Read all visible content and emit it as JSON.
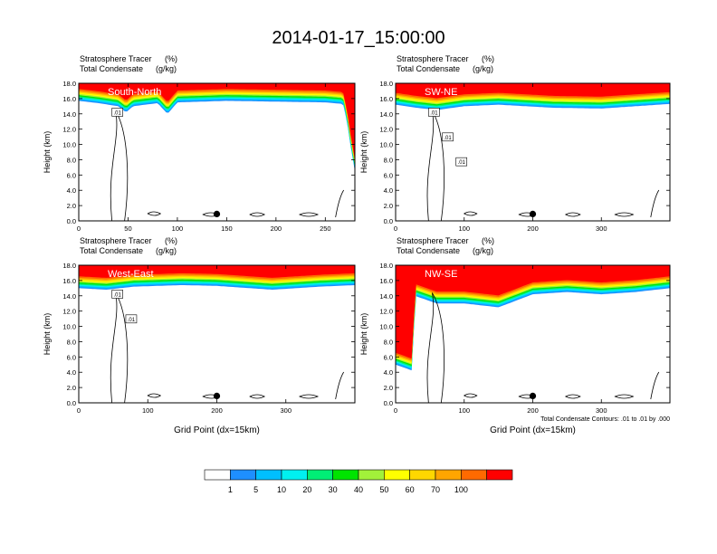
{
  "page": {
    "title": "2014-01-17_15:00:00"
  },
  "colorbar": {
    "levels": [
      "1",
      "5",
      "10",
      "20",
      "30",
      "40",
      "50",
      "60",
      "70",
      "100"
    ],
    "colors": [
      "#ffffff",
      "#1e8fff",
      "#00bfff",
      "#00f0f0",
      "#00ee76",
      "#00e400",
      "#a2f13a",
      "#ffff00",
      "#ffd700",
      "#ffa500",
      "#ff6a00",
      "#ff0000"
    ]
  },
  "chart_data": [
    {
      "type": "heatmap",
      "panel_label": "South-North",
      "line1_name": "Stratosphere Tracer",
      "line1_unit": "(%)",
      "line2_name": "Total Condensate",
      "line2_unit": "(g/kg)",
      "ylabel": "Height (km)",
      "xlabel": "",
      "xlim": [
        0,
        280
      ],
      "ylim": [
        0,
        18
      ],
      "xticks": [
        "0",
        "50",
        "100",
        "150",
        "200",
        "250"
      ],
      "yticks": [
        "0.0",
        "2.0",
        "4.0",
        "6.0",
        "8.0",
        "10.0",
        "12.0",
        "14.0",
        "16.0",
        "18.0"
      ],
      "tracer_bottom_km": [
        [
          0,
          15.7
        ],
        [
          20,
          15.4
        ],
        [
          40,
          15.0
        ],
        [
          48,
          14.2
        ],
        [
          55,
          15.0
        ],
        [
          80,
          15.4
        ],
        [
          90,
          14.0
        ],
        [
          100,
          15.5
        ],
        [
          150,
          15.7
        ],
        [
          200,
          15.6
        ],
        [
          250,
          15.5
        ],
        [
          268,
          15.3
        ],
        [
          272,
          13.0
        ],
        [
          276,
          9.5
        ],
        [
          280,
          6.5
        ]
      ],
      "contour_labels": [
        ".01"
      ],
      "marker_x": 140,
      "note": ""
    },
    {
      "type": "heatmap",
      "panel_label": "SW-NE",
      "line1_name": "Stratosphere Tracer",
      "line1_unit": "(%)",
      "line2_name": "Total Condensate",
      "line2_unit": "(g/kg)",
      "ylabel": "Height (km)",
      "xlabel": "",
      "xlim": [
        0,
        400
      ],
      "ylim": [
        0,
        18
      ],
      "xticks": [
        "0",
        "100",
        "200",
        "300"
      ],
      "yticks": [
        "0.0",
        "2.0",
        "4.0",
        "6.0",
        "8.0",
        "10.0",
        "12.0",
        "14.0",
        "16.0",
        "18.0"
      ],
      "tracer_bottom_km": [
        [
          0,
          15.2
        ],
        [
          30,
          14.8
        ],
        [
          60,
          14.5
        ],
        [
          100,
          15.0
        ],
        [
          150,
          15.2
        ],
        [
          230,
          14.8
        ],
        [
          300,
          14.7
        ],
        [
          350,
          15.0
        ],
        [
          400,
          15.3
        ]
      ],
      "contour_labels": [
        ".01",
        ".01",
        ".01"
      ],
      "marker_x": 200,
      "note": ""
    },
    {
      "type": "heatmap",
      "panel_label": "West-East",
      "line1_name": "Stratosphere Tracer",
      "line1_unit": "(%)",
      "line2_name": "Total Condensate",
      "line2_unit": "(g/kg)",
      "ylabel": "Height (km)",
      "xlabel": "Grid Point (dx=15km)",
      "xlim": [
        0,
        400
      ],
      "ylim": [
        0,
        18
      ],
      "xticks": [
        "0",
        "100",
        "200",
        "300"
      ],
      "yticks": [
        "0.0",
        "2.0",
        "4.0",
        "6.0",
        "8.0",
        "10.0",
        "12.0",
        "14.0",
        "16.0",
        "18.0"
      ],
      "tracer_bottom_km": [
        [
          0,
          15.0
        ],
        [
          40,
          14.8
        ],
        [
          80,
          15.2
        ],
        [
          150,
          15.4
        ],
        [
          200,
          15.3
        ],
        [
          280,
          14.8
        ],
        [
          350,
          15.2
        ],
        [
          400,
          15.4
        ]
      ],
      "contour_labels": [
        ".01",
        ".01"
      ],
      "marker_x": 200,
      "note": ""
    },
    {
      "type": "heatmap",
      "panel_label": "NW-SE",
      "line1_name": "Stratosphere Tracer",
      "line1_unit": "(%)",
      "line2_name": "Total Condensate",
      "line2_unit": "(g/kg)",
      "ylabel": "Height (km)",
      "xlabel": "Grid Point (dx=15km)",
      "xlim": [
        0,
        400
      ],
      "ylim": [
        0,
        18
      ],
      "xticks": [
        "0",
        "100",
        "200",
        "300"
      ],
      "yticks": [
        "0.0",
        "2.0",
        "4.0",
        "6.0",
        "8.0",
        "10.0",
        "12.0",
        "14.0",
        "16.0",
        "18.0"
      ],
      "tracer_bottom_km": [
        [
          0,
          5.0
        ],
        [
          25,
          4.2
        ],
        [
          28,
          14.0
        ],
        [
          60,
          13.0
        ],
        [
          100,
          13.0
        ],
        [
          150,
          12.5
        ],
        [
          200,
          14.2
        ],
        [
          250,
          14.5
        ],
        [
          300,
          14.2
        ],
        [
          350,
          14.5
        ],
        [
          400,
          15.0
        ]
      ],
      "contour_labels": [],
      "marker_x": 200,
      "note": "Total Condensate Contours: .01 to .01 by .000"
    }
  ]
}
